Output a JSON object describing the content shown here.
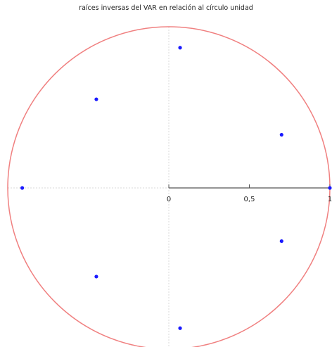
{
  "title": "raíces inversas del VAR en relación al círculo unidad",
  "chart_data": {
    "type": "scatter",
    "title": "raíces inversas del VAR en relación al círculo unidad",
    "xlabel": "",
    "ylabel": "",
    "xlim": [
      -1,
      1
    ],
    "ylim": [
      -1,
      1
    ],
    "x_ticks": [
      0,
      0.5,
      1
    ],
    "x_tick_labels": [
      "0",
      "0,5",
      "1"
    ],
    "unit_circle": {
      "center": [
        0,
        0
      ],
      "radius": 1,
      "color": "#f08080"
    },
    "point_color": "#1a1aff",
    "axis_color": "#555555",
    "guide_color": "#d8d8d8",
    "points": [
      {
        "x": 0.07,
        "y": 0.87
      },
      {
        "x": -0.45,
        "y": 0.55
      },
      {
        "x": 0.7,
        "y": 0.33
      },
      {
        "x": -0.91,
        "y": 0.0
      },
      {
        "x": 1.0,
        "y": 0.0
      },
      {
        "x": 0.7,
        "y": -0.33
      },
      {
        "x": -0.45,
        "y": -0.55
      },
      {
        "x": 0.07,
        "y": -0.87
      }
    ]
  }
}
